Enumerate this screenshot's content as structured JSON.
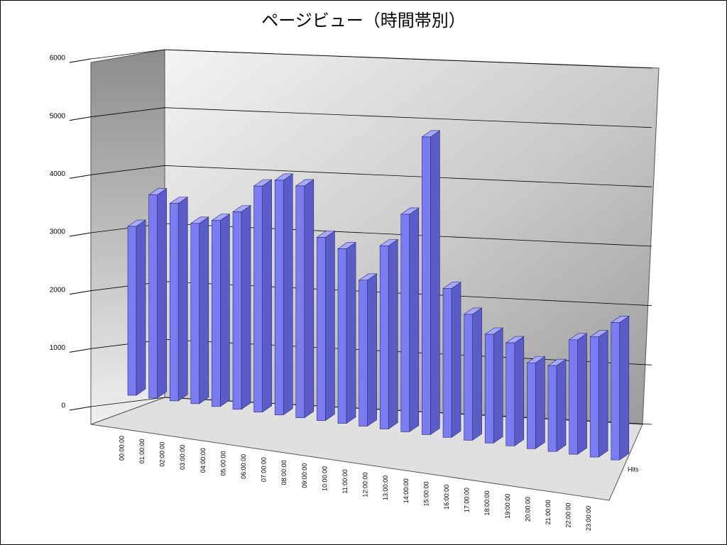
{
  "chart_data": {
    "type": "bar3d",
    "title": "ページビュー（時間帯別）",
    "categories": [
      "00:00:00",
      "01:00:00",
      "02:00:00",
      "03:00:00",
      "04:00:00",
      "05:00:00",
      "06:00:00",
      "07:00:00",
      "08:00:00",
      "09:00:00",
      "10:00:00",
      "11:00:00",
      "12:00:00",
      "13:00:00",
      "14:00:00",
      "15:00:00",
      "16:00:00",
      "17:00:00",
      "18:00:00",
      "19:00:00",
      "20:00:00",
      "21:00:00",
      "22:00:00",
      "23:00:00"
    ],
    "series": [
      {
        "name": "Hits",
        "color": "#7b7bf2",
        "values": [
          2950,
          3550,
          3450,
          3150,
          3250,
          3450,
          3950,
          4100,
          4050,
          3200,
          3050,
          2550,
          3200,
          3800,
          5200,
          2600,
          2200,
          1900,
          1800,
          1500,
          1500,
          2000,
          2100,
          2400
        ]
      }
    ],
    "ylim": [
      0,
      6000
    ],
    "yticks": [
      0,
      1000,
      2000,
      3000,
      4000,
      5000,
      6000
    ],
    "grid": true
  }
}
